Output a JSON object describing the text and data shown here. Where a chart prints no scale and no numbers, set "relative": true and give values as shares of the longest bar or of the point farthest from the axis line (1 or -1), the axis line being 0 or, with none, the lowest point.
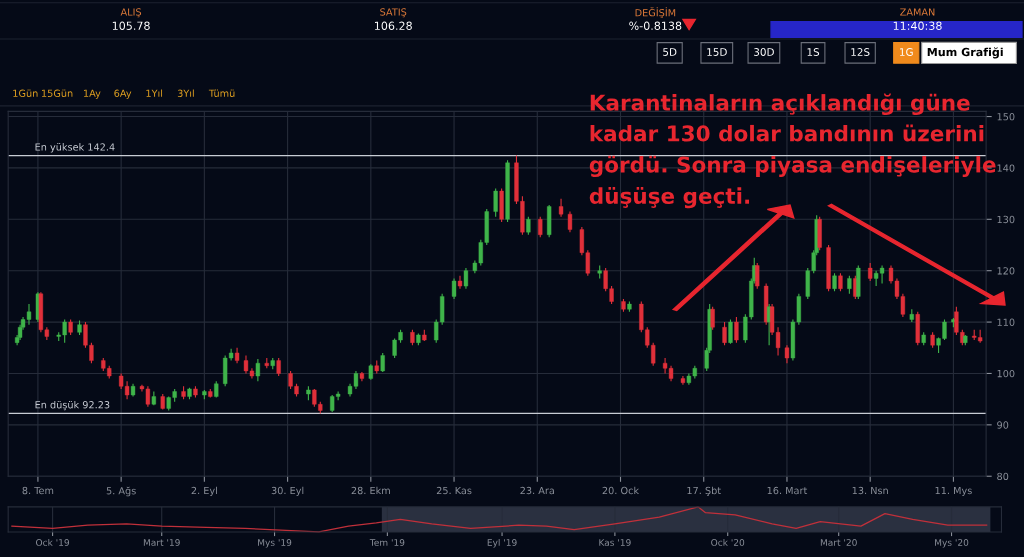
{
  "chart_data": [
    {
      "type": "candlestick",
      "x": [
        "2019-07-01",
        "2019-07-02",
        "2019-07-03",
        "2019-07-05",
        "2019-07-08",
        "2019-07-09",
        "2019-07-11",
        "2019-07-15",
        "2019-07-17",
        "2019-07-19",
        "2019-07-22",
        "2019-07-24",
        "2019-07-26",
        "2019-07-30",
        "2019-08-01",
        "2019-08-05",
        "2019-08-07",
        "2019-08-09",
        "2019-08-12",
        "2019-08-14",
        "2019-08-16",
        "2019-08-19",
        "2019-08-21",
        "2019-08-23",
        "2019-08-26",
        "2019-08-28",
        "2019-08-30",
        "2019-09-02",
        "2019-09-04",
        "2019-09-06",
        "2019-09-09",
        "2019-09-11",
        "2019-09-13",
        "2019-09-16",
        "2019-09-18",
        "2019-09-20",
        "2019-09-23",
        "2019-09-25",
        "2019-09-27",
        "2019-10-01",
        "2019-10-03",
        "2019-10-07",
        "2019-10-09",
        "2019-10-11",
        "2019-10-15",
        "2019-10-17",
        "2019-10-21",
        "2019-10-23",
        "2019-10-25",
        "2019-10-28",
        "2019-10-30",
        "2019-11-01",
        "2019-11-05",
        "2019-11-07",
        "2019-11-11",
        "2019-11-13",
        "2019-11-15",
        "2019-11-19",
        "2019-11-21",
        "2019-11-25",
        "2019-11-27",
        "2019-11-29",
        "2019-12-02",
        "2019-12-04",
        "2019-12-06",
        "2019-12-09",
        "2019-12-11",
        "2019-12-13",
        "2019-12-16",
        "2019-12-18",
        "2019-12-20",
        "2019-12-24",
        "2019-12-27",
        "2019-12-31",
        "2020-01-03",
        "2020-01-07",
        "2020-01-09",
        "2020-01-13",
        "2020-01-15",
        "2020-01-17",
        "2020-01-21",
        "2020-01-23",
        "2020-01-27",
        "2020-01-29",
        "2020-01-31",
        "2020-02-04",
        "2020-02-06",
        "2020-02-10",
        "2020-02-12",
        "2020-02-14",
        "2020-02-18",
        "2020-02-19",
        "2020-02-20",
        "2020-02-24",
        "2020-02-26",
        "2020-02-28",
        "2020-03-02",
        "2020-03-04",
        "2020-03-05",
        "2020-03-06",
        "2020-03-09",
        "2020-03-10",
        "2020-03-11",
        "2020-03-13",
        "2020-03-16",
        "2020-03-18",
        "2020-03-20",
        "2020-03-23",
        "2020-03-25",
        "2020-03-26",
        "2020-03-27",
        "2020-03-30",
        "2020-04-01",
        "2020-04-03",
        "2020-04-06",
        "2020-04-08",
        "2020-04-09",
        "2020-04-13",
        "2020-04-15",
        "2020-04-17",
        "2020-04-20",
        "2020-04-22",
        "2020-04-24",
        "2020-04-27",
        "2020-04-29",
        "2020-05-01",
        "2020-05-04",
        "2020-05-06",
        "2020-05-08",
        "2020-05-11",
        "2020-05-12",
        "2020-05-14",
        "2020-05-15",
        "2020-05-18",
        "2020-05-20"
      ],
      "ohlc": [
        [
          106.0,
          107.5,
          105.5,
          107.0
        ],
        [
          107.0,
          109.5,
          106.5,
          109.0
        ],
        [
          109.0,
          111.0,
          108.5,
          110.5
        ],
        [
          110.5,
          113.5,
          109.5,
          112.0
        ],
        [
          110.5,
          115.8,
          110.0,
          115.5
        ],
        [
          115.5,
          115.8,
          108.0,
          108.5
        ],
        [
          108.5,
          109.0,
          106.5,
          107.2
        ],
        [
          107.2,
          108.0,
          106.3,
          107.5
        ],
        [
          107.5,
          110.5,
          106.0,
          110.0
        ],
        [
          110.0,
          110.5,
          107.5,
          108.0
        ],
        [
          108.0,
          110.3,
          107.5,
          109.5
        ],
        [
          109.5,
          110.0,
          105.0,
          105.5
        ],
        [
          105.5,
          106.0,
          102.0,
          102.5
        ],
        [
          102.5,
          103.0,
          100.5,
          101.0
        ],
        [
          101.0,
          101.5,
          99.0,
          99.5
        ],
        [
          99.5,
          100.0,
          97.0,
          97.5
        ],
        [
          97.5,
          98.5,
          95.0,
          95.8
        ],
        [
          95.8,
          98.0,
          95.5,
          97.5
        ],
        [
          97.5,
          97.8,
          96.5,
          97.0
        ],
        [
          97.0,
          97.5,
          93.5,
          94.0
        ],
        [
          94.0,
          96.5,
          93.8,
          95.5
        ],
        [
          95.5,
          96.0,
          93.0,
          93.2
        ],
        [
          93.2,
          95.5,
          92.8,
          95.3
        ],
        [
          95.3,
          97.0,
          94.5,
          96.5
        ],
        [
          96.5,
          97.5,
          95.0,
          95.5
        ],
        [
          95.5,
          97.2,
          95.0,
          97.0
        ],
        [
          97.0,
          97.5,
          95.3,
          95.8
        ],
        [
          95.8,
          96.8,
          95.0,
          96.5
        ],
        [
          96.5,
          97.0,
          95.3,
          95.5
        ],
        [
          95.5,
          98.5,
          95.3,
          98.0
        ],
        [
          98.0,
          103.5,
          97.5,
          103.0
        ],
        [
          103.0,
          104.8,
          102.5,
          104.0
        ],
        [
          104.0,
          105.0,
          102.0,
          102.5
        ],
        [
          102.5,
          103.5,
          100.0,
          100.5
        ],
        [
          100.5,
          101.0,
          99.0,
          99.5
        ],
        [
          99.5,
          102.8,
          98.5,
          102.0
        ],
        [
          102.0,
          103.0,
          101.0,
          101.5
        ],
        [
          101.5,
          103.0,
          100.8,
          102.5
        ],
        [
          102.5,
          103.0,
          99.5,
          100.0
        ],
        [
          100.0,
          100.5,
          97.0,
          97.5
        ],
        [
          97.5,
          98.0,
          95.5,
          96.0
        ],
        [
          96.0,
          97.5,
          94.8,
          96.8
        ],
        [
          96.8,
          97.0,
          93.5,
          94.0
        ],
        [
          94.0,
          94.5,
          92.23,
          92.8
        ],
        [
          92.8,
          95.8,
          92.5,
          95.5
        ],
        [
          95.5,
          96.5,
          94.8,
          96.0
        ],
        [
          96.0,
          98.0,
          95.5,
          97.5
        ],
        [
          97.5,
          100.5,
          97.0,
          100.0
        ],
        [
          100.0,
          100.3,
          98.5,
          99.0
        ],
        [
          99.0,
          101.8,
          98.8,
          101.5
        ],
        [
          101.5,
          102.5,
          100.0,
          100.5
        ],
        [
          100.5,
          104.0,
          100.3,
          103.5
        ],
        [
          103.5,
          106.8,
          103.0,
          106.5
        ],
        [
          106.5,
          108.5,
          106.0,
          108.0
        ],
        [
          108.0,
          108.5,
          105.5,
          106.0
        ],
        [
          106.0,
          107.8,
          105.5,
          107.5
        ],
        [
          107.5,
          108.5,
          106.3,
          106.5
        ],
        [
          106.5,
          110.5,
          106.0,
          110.0
        ],
        [
          110.0,
          115.5,
          109.5,
          115.0
        ],
        [
          115.0,
          118.5,
          114.5,
          118.0
        ],
        [
          118.0,
          119.0,
          116.5,
          117.0
        ],
        [
          117.0,
          120.5,
          116.5,
          120.0
        ],
        [
          120.0,
          122.0,
          119.5,
          121.5
        ],
        [
          121.5,
          126.0,
          121.0,
          125.5
        ],
        [
          125.5,
          132.0,
          125.0,
          131.5
        ],
        [
          131.5,
          136.0,
          130.5,
          135.5
        ],
        [
          135.5,
          136.0,
          129.5,
          130.0
        ],
        [
          130.0,
          141.5,
          129.5,
          141.0
        ],
        [
          141.0,
          142.4,
          133.0,
          133.5
        ],
        [
          133.5,
          134.5,
          127.0,
          127.5
        ],
        [
          127.5,
          130.5,
          127.0,
          130.0
        ],
        [
          130.0,
          130.5,
          126.5,
          127.0
        ],
        [
          127.0,
          132.8,
          126.5,
          132.5
        ],
        [
          132.5,
          134.0,
          130.5,
          131.0
        ],
        [
          131.0,
          131.5,
          127.5,
          128.0
        ],
        [
          128.0,
          128.5,
          123.0,
          123.5
        ],
        [
          123.5,
          124.0,
          119.0,
          119.5
        ],
        [
          119.5,
          121.0,
          118.5,
          120.0
        ],
        [
          120.0,
          120.5,
          116.0,
          116.5
        ],
        [
          116.5,
          117.0,
          113.5,
          114.0
        ],
        [
          114.0,
          114.5,
          112.0,
          112.5
        ],
        [
          112.5,
          114.0,
          112.0,
          113.5
        ],
        [
          113.5,
          114.0,
          108.0,
          108.5
        ],
        [
          108.5,
          109.0,
          105.0,
          105.5
        ],
        [
          105.5,
          106.0,
          101.5,
          102.0
        ],
        [
          102.0,
          103.0,
          100.0,
          101.0
        ],
        [
          101.0,
          101.5,
          98.5,
          99.0
        ],
        [
          99.0,
          99.5,
          97.8,
          98.2
        ],
        [
          98.2,
          100.0,
          97.8,
          99.5
        ],
        [
          99.5,
          101.5,
          99.0,
          101.0
        ],
        [
          101.0,
          105.0,
          100.5,
          104.5
        ],
        [
          104.5,
          113.5,
          104.0,
          112.5
        ],
        [
          112.5,
          113.0,
          108.5,
          109.0
        ],
        [
          109.0,
          110.0,
          105.5,
          106.0
        ],
        [
          106.0,
          110.5,
          105.8,
          110.0
        ],
        [
          110.0,
          111.0,
          106.0,
          106.5
        ],
        [
          106.5,
          111.5,
          106.0,
          111.0
        ],
        [
          111.0,
          118.5,
          110.5,
          118.0
        ],
        [
          118.0,
          122.5,
          117.5,
          121.0
        ],
        [
          121.0,
          121.5,
          116.5,
          117.0
        ],
        [
          117.0,
          117.5,
          109.5,
          110.0
        ],
        [
          110.0,
          113.5,
          105.5,
          113.0
        ],
        [
          113.0,
          113.5,
          107.5,
          108.0
        ],
        [
          108.0,
          109.0,
          103.5,
          105.0
        ],
        [
          105.0,
          105.5,
          102.0,
          103.0
        ],
        [
          103.0,
          110.5,
          102.5,
          110.0
        ],
        [
          110.0,
          115.5,
          109.5,
          115.0
        ],
        [
          115.0,
          120.5,
          114.5,
          120.0
        ],
        [
          120.0,
          124.0,
          119.5,
          123.5
        ],
        [
          123.5,
          130.8,
          123.0,
          130.0
        ],
        [
          130.0,
          130.5,
          124.0,
          124.5
        ],
        [
          124.5,
          125.0,
          116.0,
          116.5
        ],
        [
          116.5,
          119.5,
          116.0,
          119.0
        ],
        [
          119.0,
          119.5,
          116.0,
          116.5
        ],
        [
          116.5,
          119.0,
          115.5,
          118.5
        ],
        [
          118.5,
          119.0,
          114.5,
          115.0
        ],
        [
          115.0,
          121.0,
          114.5,
          120.5
        ],
        [
          120.5,
          121.5,
          118.0,
          118.5
        ],
        [
          118.5,
          120.0,
          117.0,
          119.5
        ],
        [
          119.5,
          121.0,
          117.5,
          120.5
        ],
        [
          120.5,
          121.0,
          117.5,
          118.0
        ],
        [
          118.0,
          118.5,
          114.5,
          115.0
        ],
        [
          115.0,
          115.5,
          111.0,
          111.5
        ],
        [
          110.5,
          112.5,
          110.0,
          111.5
        ],
        [
          111.5,
          112.0,
          105.5,
          106.0
        ],
        [
          106.0,
          108.0,
          105.5,
          107.5
        ],
        [
          107.5,
          108.0,
          105.0,
          105.5
        ],
        [
          105.5,
          107.0,
          104.0,
          106.8
        ],
        [
          106.8,
          110.5,
          106.5,
          110.0
        ],
        [
          110.0,
          110.8,
          109.0,
          110.5
        ],
        [
          112.0,
          113.0,
          107.5,
          108.0
        ],
        [
          108.0,
          108.5,
          105.5,
          106.0
        ],
        [
          106.0,
          107.5,
          105.5,
          107.3
        ],
        [
          107.3,
          108.5,
          106.5,
          107.0
        ],
        [
          107.0,
          108.5,
          106.0,
          106.3
        ]
      ],
      "xlim": [
        "2019-06-28",
        "2020-05-22"
      ],
      "xticks": [
        {
          "value": "2019-07-08",
          "label": "8. Tem"
        },
        {
          "value": "2019-08-05",
          "label": "5. Ağs"
        },
        {
          "value": "2019-09-02",
          "label": "2. Eyl"
        },
        {
          "value": "2019-09-30",
          "label": "30. Eyl"
        },
        {
          "value": "2019-10-28",
          "label": "28. Ekm"
        },
        {
          "value": "2019-11-25",
          "label": "25. Kas"
        },
        {
          "value": "2019-12-23",
          "label": "23. Ara"
        },
        {
          "value": "2020-01-20",
          "label": "20. Ock"
        },
        {
          "value": "2020-02-17",
          "label": "17. Şbt"
        },
        {
          "value": "2020-03-16",
          "label": "16. Mart"
        },
        {
          "value": "2020-04-13",
          "label": "13. Nsn"
        },
        {
          "value": "2020-05-11",
          "label": "11. Mys"
        }
      ],
      "ylim": [
        80,
        151
      ],
      "yticks": [
        80,
        90,
        100,
        110,
        120,
        130,
        140,
        150
      ],
      "grid": true,
      "ref_lines": [
        {
          "axis": "y",
          "value": 142.4,
          "label": "En yüksek 142.4",
          "color": "#c8ccd4"
        },
        {
          "axis": "y",
          "value": 92.23,
          "label": "En düşük 92.23",
          "color": "#c8ccd4"
        }
      ],
      "annotations": [
        "Karantinaların açıklandığı güne kadar 130 dolar bandının üzerini gördü. Sonra piyasa endişeleriyle düşüşe geçti.",
        "ALIŞ",
        "105.78",
        "SATIŞ",
        "106.28",
        "DEĞİŞİM",
        "%-0.8138",
        "ZAMAN",
        "11:40:38",
        "5D",
        "15D",
        "30D",
        "1S",
        "12S",
        "1G",
        "Mum Grafiği",
        "1Gün",
        "15Gün",
        "1Ay",
        "6Ay",
        "1Yıl",
        "3Yıl",
        "Tümü"
      ]
    },
    {
      "type": "line",
      "x": [
        "2018-12-10",
        "2019-01-01",
        "2019-01-20",
        "2019-02-10",
        "2019-03-01",
        "2019-03-25",
        "2019-04-15",
        "2019-05-10",
        "2019-05-25",
        "2019-06-10",
        "2019-06-25",
        "2019-07-08",
        "2019-07-25",
        "2019-08-15",
        "2019-09-10",
        "2019-09-25",
        "2019-10-10",
        "2019-11-01",
        "2019-11-25",
        "2019-12-16",
        "2019-12-20",
        "2020-01-05",
        "2020-01-25",
        "2020-02-07",
        "2020-02-20",
        "2020-03-13",
        "2020-03-26",
        "2020-04-10",
        "2020-04-29",
        "2020-05-20"
      ],
      "series": [
        {
          "color": "#c0303a",
          "values": [
            0.23,
            0.14,
            0.27,
            0.32,
            0.23,
            0.18,
            0.14,
            0.05,
            0,
            0.23,
            0.36,
            0.5,
            0.32,
            0.14,
            0.27,
            0.23,
            0.09,
            0.32,
            0.59,
            1,
            0.77,
            0.68,
            0.32,
            0.14,
            0.41,
            0.23,
            0.73,
            0.5,
            0.27,
            0.27
          ]
        }
      ],
      "relative": true,
      "xlim": [
        "2018-12-08",
        "2020-05-28"
      ],
      "xticks": [
        {
          "value": "2019-01-01",
          "label": "Ock '19"
        },
        {
          "value": "2019-03-01",
          "label": "Mart '19"
        },
        {
          "value": "2019-05-01",
          "label": "Mys '19"
        },
        {
          "value": "2019-07-01",
          "label": "Tem '19"
        },
        {
          "value": "2019-09-01",
          "label": "Eyl '19"
        },
        {
          "value": "2019-11-01",
          "label": "Kas '19"
        },
        {
          "value": "2020-01-01",
          "label": "Ock '20"
        },
        {
          "value": "2020-03-01",
          "label": "Mart '20"
        },
        {
          "value": "2020-05-01",
          "label": "Mys '20"
        }
      ],
      "grid": "x",
      "bands": [
        {
          "axis": "x",
          "from": "2019-06-28",
          "to": "2020-05-22",
          "color": "#2a3040"
        }
      ]
    }
  ]
}
